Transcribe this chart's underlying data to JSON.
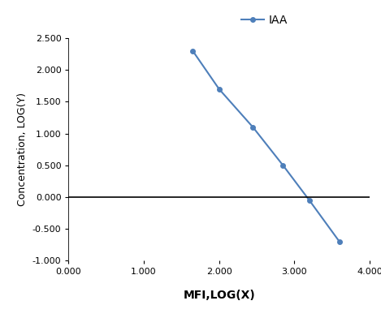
{
  "x": [
    1.65,
    2.0,
    2.45,
    2.85,
    3.2,
    3.6
  ],
  "y": [
    2.3,
    1.7,
    1.1,
    0.5,
    -0.05,
    -0.7
  ],
  "line_color": "#4e7fba",
  "marker_color": "#4e7fba",
  "marker_style": "o",
  "marker_size": 4,
  "line_width": 1.5,
  "legend_label": "IAA",
  "xlabel": "MFI,LOG(X)",
  "ylabel": "Concentration, LOG(Y)",
  "xlim": [
    0.0,
    4.0
  ],
  "ylim": [
    -1.0,
    2.5
  ],
  "xticks": [
    0.0,
    1.0,
    2.0,
    3.0,
    4.0
  ],
  "yticks": [
    -1.0,
    -0.5,
    0.0,
    0.5,
    1.0,
    1.5,
    2.0,
    2.5
  ],
  "xlabel_fontsize": 10,
  "ylabel_fontsize": 9,
  "tick_fontsize": 8,
  "legend_fontsize": 10,
  "background_color": "#ffffff"
}
